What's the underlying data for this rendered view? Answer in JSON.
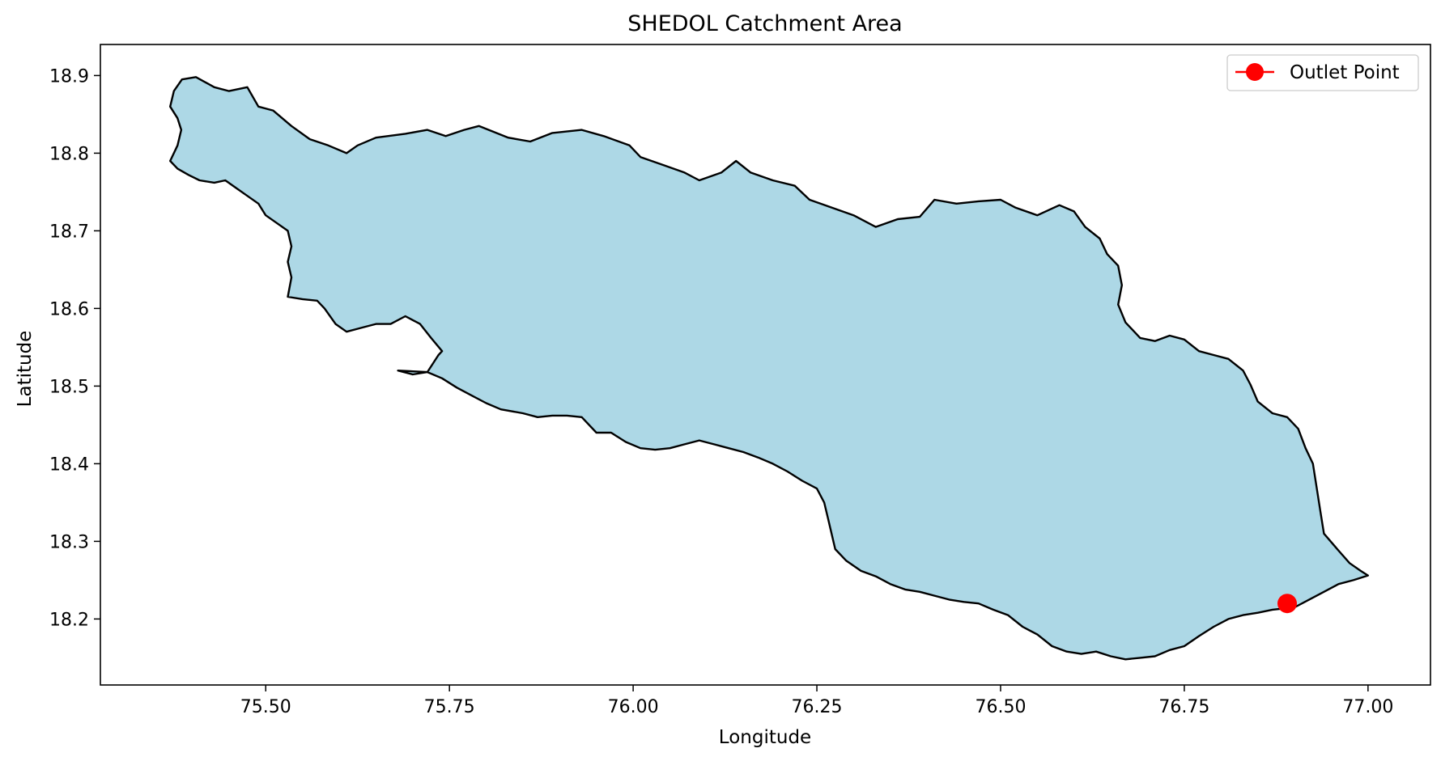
{
  "chart_data": {
    "type": "map",
    "title": "SHEDOL Catchment Area",
    "xlabel": "Longitude",
    "ylabel": "Latitude",
    "xlim": [
      75.275,
      77.085
    ],
    "ylim": [
      18.115,
      18.94
    ],
    "xticks": [
      75.5,
      75.75,
      76.0,
      76.25,
      76.5,
      76.75,
      77.0
    ],
    "xtick_labels": [
      "75.50",
      "75.75",
      "76.00",
      "76.25",
      "76.50",
      "76.75",
      "77.00"
    ],
    "yticks": [
      18.2,
      18.3,
      18.4,
      18.5,
      18.6,
      18.7,
      18.8,
      18.9
    ],
    "ytick_labels": [
      "18.2",
      "18.3",
      "18.4",
      "18.5",
      "18.6",
      "18.7",
      "18.8",
      "18.9"
    ],
    "grid": false,
    "legend_position": "top-right",
    "catchment": {
      "fill_color": "#add8e6",
      "edge_color": "#000000",
      "boundary": [
        [
          75.386,
          18.895
        ],
        [
          75.405,
          18.898
        ],
        [
          75.43,
          18.885
        ],
        [
          75.45,
          18.88
        ],
        [
          75.475,
          18.885
        ],
        [
          75.49,
          18.86
        ],
        [
          75.51,
          18.855
        ],
        [
          75.535,
          18.835
        ],
        [
          75.56,
          18.818
        ],
        [
          75.585,
          18.81
        ],
        [
          75.61,
          18.8
        ],
        [
          75.625,
          18.81
        ],
        [
          75.65,
          18.82
        ],
        [
          75.69,
          18.825
        ],
        [
          75.72,
          18.83
        ],
        [
          75.745,
          18.822
        ],
        [
          75.77,
          18.83
        ],
        [
          75.79,
          18.835
        ],
        [
          75.83,
          18.82
        ],
        [
          75.86,
          18.815
        ],
        [
          75.89,
          18.826
        ],
        [
          75.93,
          18.83
        ],
        [
          75.96,
          18.822
        ],
        [
          75.995,
          18.81
        ],
        [
          76.01,
          18.795
        ],
        [
          76.04,
          18.785
        ],
        [
          76.07,
          18.775
        ],
        [
          76.09,
          18.765
        ],
        [
          76.12,
          18.775
        ],
        [
          76.14,
          18.79
        ],
        [
          76.16,
          18.775
        ],
        [
          76.19,
          18.765
        ],
        [
          76.22,
          18.758
        ],
        [
          76.24,
          18.74
        ],
        [
          76.27,
          18.73
        ],
        [
          76.3,
          18.72
        ],
        [
          76.33,
          18.705
        ],
        [
          76.36,
          18.715
        ],
        [
          76.39,
          18.718
        ],
        [
          76.41,
          18.74
        ],
        [
          76.44,
          18.735
        ],
        [
          76.47,
          18.738
        ],
        [
          76.5,
          18.74
        ],
        [
          76.52,
          18.73
        ],
        [
          76.55,
          18.72
        ],
        [
          76.58,
          18.733
        ],
        [
          76.6,
          18.725
        ],
        [
          76.615,
          18.705
        ],
        [
          76.635,
          18.69
        ],
        [
          76.645,
          18.67
        ],
        [
          76.66,
          18.655
        ],
        [
          76.665,
          18.63
        ],
        [
          76.66,
          18.605
        ],
        [
          76.67,
          18.582
        ],
        [
          76.69,
          18.562
        ],
        [
          76.71,
          18.558
        ],
        [
          76.73,
          18.565
        ],
        [
          76.75,
          18.56
        ],
        [
          76.77,
          18.545
        ],
        [
          76.79,
          18.54
        ],
        [
          76.81,
          18.535
        ],
        [
          76.83,
          18.52
        ],
        [
          76.84,
          18.502
        ],
        [
          76.85,
          18.48
        ],
        [
          76.87,
          18.465
        ],
        [
          76.89,
          18.46
        ],
        [
          76.905,
          18.445
        ],
        [
          76.915,
          18.42
        ],
        [
          76.925,
          18.4
        ],
        [
          76.93,
          18.37
        ],
        [
          76.935,
          18.34
        ],
        [
          76.94,
          18.31
        ],
        [
          76.96,
          18.288
        ],
        [
          76.975,
          18.272
        ],
        [
          76.99,
          18.262
        ],
        [
          77.0,
          18.256
        ],
        [
          76.98,
          18.25
        ],
        [
          76.96,
          18.245
        ],
        [
          76.94,
          18.235
        ],
        [
          76.92,
          18.225
        ],
        [
          76.9,
          18.215
        ],
        [
          76.87,
          18.212
        ],
        [
          76.85,
          18.208
        ],
        [
          76.83,
          18.205
        ],
        [
          76.81,
          18.2
        ],
        [
          76.79,
          18.19
        ],
        [
          76.77,
          18.178
        ],
        [
          76.75,
          18.165
        ],
        [
          76.73,
          18.16
        ],
        [
          76.71,
          18.152
        ],
        [
          76.69,
          18.15
        ],
        [
          76.67,
          18.148
        ],
        [
          76.65,
          18.152
        ],
        [
          76.63,
          18.158
        ],
        [
          76.61,
          18.155
        ],
        [
          76.59,
          18.158
        ],
        [
          76.57,
          18.165
        ],
        [
          76.55,
          18.18
        ],
        [
          76.53,
          18.19
        ],
        [
          76.51,
          18.205
        ],
        [
          76.49,
          18.212
        ],
        [
          76.47,
          18.22
        ],
        [
          76.45,
          18.222
        ],
        [
          76.43,
          18.225
        ],
        [
          76.41,
          18.23
        ],
        [
          76.39,
          18.235
        ],
        [
          76.37,
          18.238
        ],
        [
          76.35,
          18.245
        ],
        [
          76.33,
          18.255
        ],
        [
          76.31,
          18.262
        ],
        [
          76.29,
          18.275
        ],
        [
          76.275,
          18.29
        ],
        [
          76.27,
          18.31
        ],
        [
          76.265,
          18.33
        ],
        [
          76.26,
          18.35
        ],
        [
          76.25,
          18.368
        ],
        [
          76.23,
          18.378
        ],
        [
          76.21,
          18.39
        ],
        [
          76.19,
          18.4
        ],
        [
          76.17,
          18.408
        ],
        [
          76.15,
          18.415
        ],
        [
          76.13,
          18.42
        ],
        [
          76.11,
          18.425
        ],
        [
          76.09,
          18.43
        ],
        [
          76.07,
          18.425
        ],
        [
          76.05,
          18.42
        ],
        [
          76.03,
          18.418
        ],
        [
          76.01,
          18.42
        ],
        [
          75.99,
          18.428
        ],
        [
          75.97,
          18.44
        ],
        [
          75.95,
          18.44
        ],
        [
          75.93,
          18.46
        ],
        [
          75.91,
          18.462
        ],
        [
          75.89,
          18.462
        ],
        [
          75.87,
          18.46
        ],
        [
          75.85,
          18.465
        ],
        [
          75.82,
          18.47
        ],
        [
          75.8,
          18.478
        ],
        [
          75.78,
          18.488
        ],
        [
          75.76,
          18.498
        ],
        [
          75.74,
          18.51
        ],
        [
          75.72,
          18.518
        ],
        [
          75.7,
          18.515
        ],
        [
          75.68,
          18.52
        ],
        [
          75.72,
          18.518
        ],
        [
          75.735,
          18.54
        ],
        [
          75.74,
          18.545
        ],
        [
          75.725,
          18.562
        ],
        [
          75.71,
          18.58
        ],
        [
          75.69,
          18.59
        ],
        [
          75.67,
          18.58
        ],
        [
          75.65,
          18.58
        ],
        [
          75.63,
          18.575
        ],
        [
          75.61,
          18.57
        ],
        [
          75.595,
          18.58
        ],
        [
          75.58,
          18.6
        ],
        [
          75.57,
          18.61
        ],
        [
          75.55,
          18.612
        ],
        [
          75.53,
          18.615
        ],
        [
          75.535,
          18.64
        ],
        [
          75.53,
          18.66
        ],
        [
          75.535,
          18.68
        ],
        [
          75.53,
          18.7
        ],
        [
          75.515,
          18.71
        ],
        [
          75.5,
          18.72
        ],
        [
          75.49,
          18.735
        ],
        [
          75.475,
          18.745
        ],
        [
          75.46,
          18.755
        ],
        [
          75.445,
          18.765
        ],
        [
          75.43,
          18.762
        ],
        [
          75.41,
          18.765
        ],
        [
          75.395,
          18.772
        ],
        [
          75.38,
          18.78
        ],
        [
          75.37,
          18.79
        ],
        [
          75.38,
          18.81
        ],
        [
          75.385,
          18.83
        ],
        [
          75.38,
          18.845
        ],
        [
          75.37,
          18.86
        ],
        [
          75.375,
          18.88
        ]
      ]
    },
    "outlet_point": {
      "label": "Outlet Point",
      "lon": 76.89,
      "lat": 18.22,
      "color": "#ff0000"
    }
  }
}
